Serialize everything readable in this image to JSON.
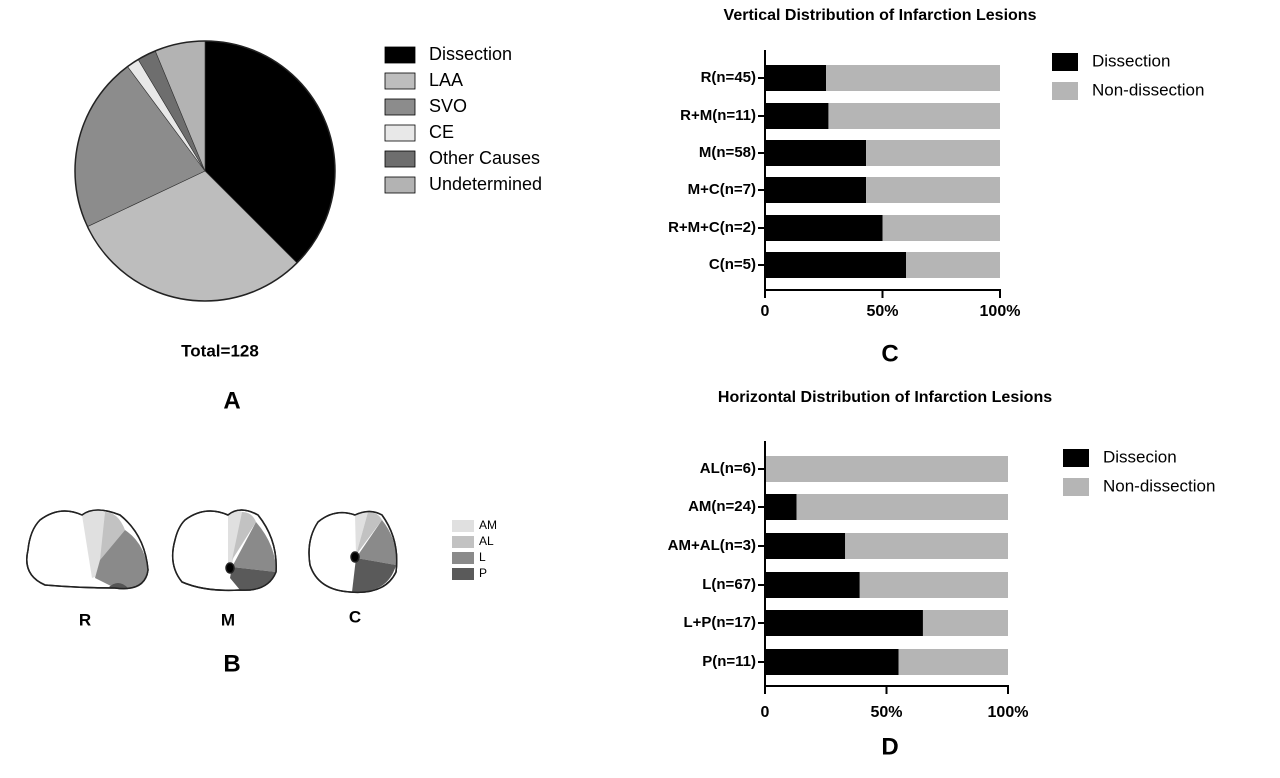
{
  "chart_data": [
    {
      "type": "pie",
      "annotation": "Total=128",
      "categories": [
        "Dissection",
        "LAA",
        "SVO",
        "CE",
        "Other Causes",
        "Undetermined"
      ],
      "values": [
        48,
        39,
        28,
        2,
        3,
        8
      ],
      "colors": [
        "#000000",
        "#bdbdbd",
        "#8c8c8c",
        "#e8e8e8",
        "#6e6e6e",
        "#b3b3b3"
      ]
    },
    {
      "type": "hbar",
      "title": "Vertical Distribution of Infarction Lesions",
      "stacked": true,
      "categories": [
        "R(n=45)",
        "R+M(n=11)",
        "M(n=58)",
        "M+C(n=7)",
        "R+M+C(n=2)",
        "C(n=5)"
      ],
      "series": [
        {
          "name": "Dissection",
          "color": "#000000",
          "values": [
            26,
            27,
            43,
            43,
            50,
            60
          ]
        },
        {
          "name": "Non-dissection",
          "color": "#b5b5b5",
          "values": [
            74,
            73,
            57,
            57,
            50,
            40
          ]
        }
      ],
      "xlim": [
        0,
        100
      ],
      "xticks": [
        0,
        {
          "value": 50,
          "label": "50%"
        },
        {
          "value": 100,
          "label": "100%"
        }
      ]
    },
    {
      "type": "hbar",
      "title": "Horizontal Distribution of Infarction Lesions",
      "stacked": true,
      "categories": [
        "AL(n=6)",
        "AM(n=24)",
        "AM+AL(n=3)",
        "L(n=67)",
        "L+P(n=17)",
        "P(n=11)"
      ],
      "series": [
        {
          "name": "Dissecion",
          "color": "#000000",
          "values": [
            0,
            13,
            33,
            39,
            65,
            55
          ]
        },
        {
          "name": "Non-dissection",
          "color": "#b5b5b5",
          "values": [
            100,
            87,
            67,
            61,
            35,
            45
          ]
        }
      ],
      "xlim": [
        0,
        100
      ],
      "xticks": [
        0,
        {
          "value": 50,
          "label": "50%"
        },
        {
          "value": 100,
          "label": "100%"
        }
      ]
    }
  ],
  "diagram": {
    "sections": [
      "R",
      "M",
      "C"
    ],
    "legend": [
      "AM",
      "AL",
      "L",
      "P"
    ]
  },
  "panels": [
    "A",
    "B",
    "C",
    "D"
  ]
}
